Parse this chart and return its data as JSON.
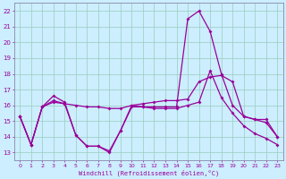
{
  "xlabel": "Windchill (Refroidissement éolien,°C)",
  "bg_color": "#cceeff",
  "grid_color": "#99ccbb",
  "line_color": "#990099",
  "spine_color": "#8888aa",
  "xlim": [
    -0.5,
    23.5
  ],
  "ylim": [
    12.5,
    22.5
  ],
  "xticks": [
    0,
    1,
    2,
    3,
    4,
    5,
    6,
    7,
    8,
    9,
    10,
    11,
    12,
    13,
    14,
    15,
    16,
    17,
    18,
    19,
    20,
    21,
    22,
    23
  ],
  "yticks": [
    13,
    14,
    15,
    16,
    17,
    18,
    19,
    20,
    21,
    22
  ],
  "series1_y": [
    15.3,
    13.5,
    15.9,
    16.6,
    16.2,
    14.1,
    13.4,
    13.4,
    13.0,
    14.4,
    16.0,
    15.9,
    15.9,
    15.9,
    15.9,
    21.5,
    22.0,
    20.7,
    18.0,
    16.0,
    15.3,
    15.1,
    15.1,
    14.0
  ],
  "series2_y": [
    15.3,
    13.5,
    15.9,
    16.3,
    16.1,
    16.0,
    15.9,
    15.9,
    15.8,
    15.8,
    16.0,
    16.1,
    16.2,
    16.3,
    16.3,
    16.4,
    17.5,
    17.8,
    17.9,
    17.5,
    15.3,
    15.1,
    14.9,
    14.0
  ],
  "series3_y": [
    15.3,
    13.5,
    15.9,
    16.2,
    16.1,
    14.1,
    13.4,
    13.4,
    13.1,
    14.4,
    15.9,
    15.9,
    15.8,
    15.8,
    15.8,
    16.0,
    16.2,
    18.2,
    16.5,
    15.5,
    14.7,
    14.2,
    13.9,
    13.5
  ]
}
